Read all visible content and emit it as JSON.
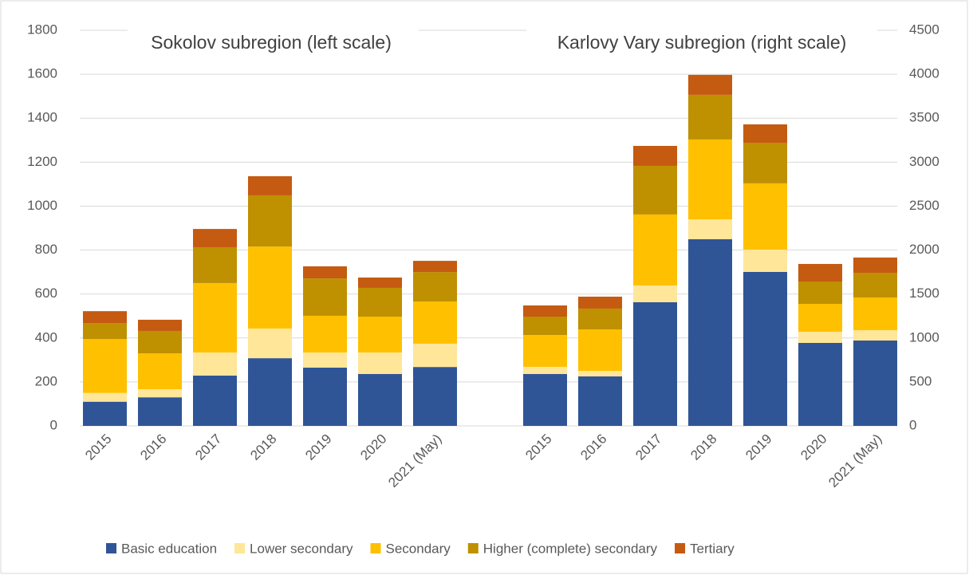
{
  "chart_data": {
    "type": "stacked-bar",
    "series": [
      {
        "name": "Basic education",
        "color": "#2f5597"
      },
      {
        "name": "Lower secondary",
        "color": "#ffe699"
      },
      {
        "name": "Secondary",
        "color": "#ffc000"
      },
      {
        "name": "Higher (complete) secondary",
        "color": "#bf9000"
      },
      {
        "name": "Tertiary",
        "color": "#c55a11"
      }
    ],
    "panels": [
      {
        "title": "Sokolov subregion (left scale)",
        "axis": "y",
        "categories": [
          "2015",
          "2016",
          "2017",
          "2018",
          "2019",
          "2020",
          "2021 (May)"
        ],
        "values": [
          [
            110,
            130,
            229,
            308,
            265,
            236,
            268
          ],
          [
            40,
            37,
            105,
            135,
            69,
            98,
            106
          ],
          [
            245,
            163,
            316,
            373,
            167,
            163,
            192
          ],
          [
            73,
            102,
            163,
            233,
            170,
            131,
            134
          ],
          [
            54,
            51,
            83,
            87,
            55,
            47,
            51
          ]
        ]
      },
      {
        "title": "Karlovy Vary subregion (right scale)",
        "axis": "y2",
        "categories": [
          "2015",
          "2016",
          "2017",
          "2018",
          "2019",
          "2020",
          "2021 (May)"
        ],
        "values": [
          [
            590,
            563,
            1407,
            2123,
            1751,
            944,
            971
          ],
          [
            82,
            63,
            190,
            227,
            254,
            127,
            118
          ],
          [
            362,
            472,
            808,
            908,
            754,
            317,
            372
          ],
          [
            209,
            236,
            553,
            508,
            462,
            254,
            281
          ],
          [
            127,
            136,
            227,
            227,
            209,
            200,
            173
          ]
        ]
      }
    ],
    "ylim": [
      0,
      1800
    ],
    "yticks": [
      0,
      200,
      400,
      600,
      800,
      1000,
      1200,
      1400,
      1600,
      1800
    ],
    "y2lim": [
      0,
      4500
    ],
    "y2ticks": [
      0,
      500,
      1000,
      1500,
      2000,
      2500,
      3000,
      3500,
      4000,
      4500
    ],
    "grid": true
  }
}
